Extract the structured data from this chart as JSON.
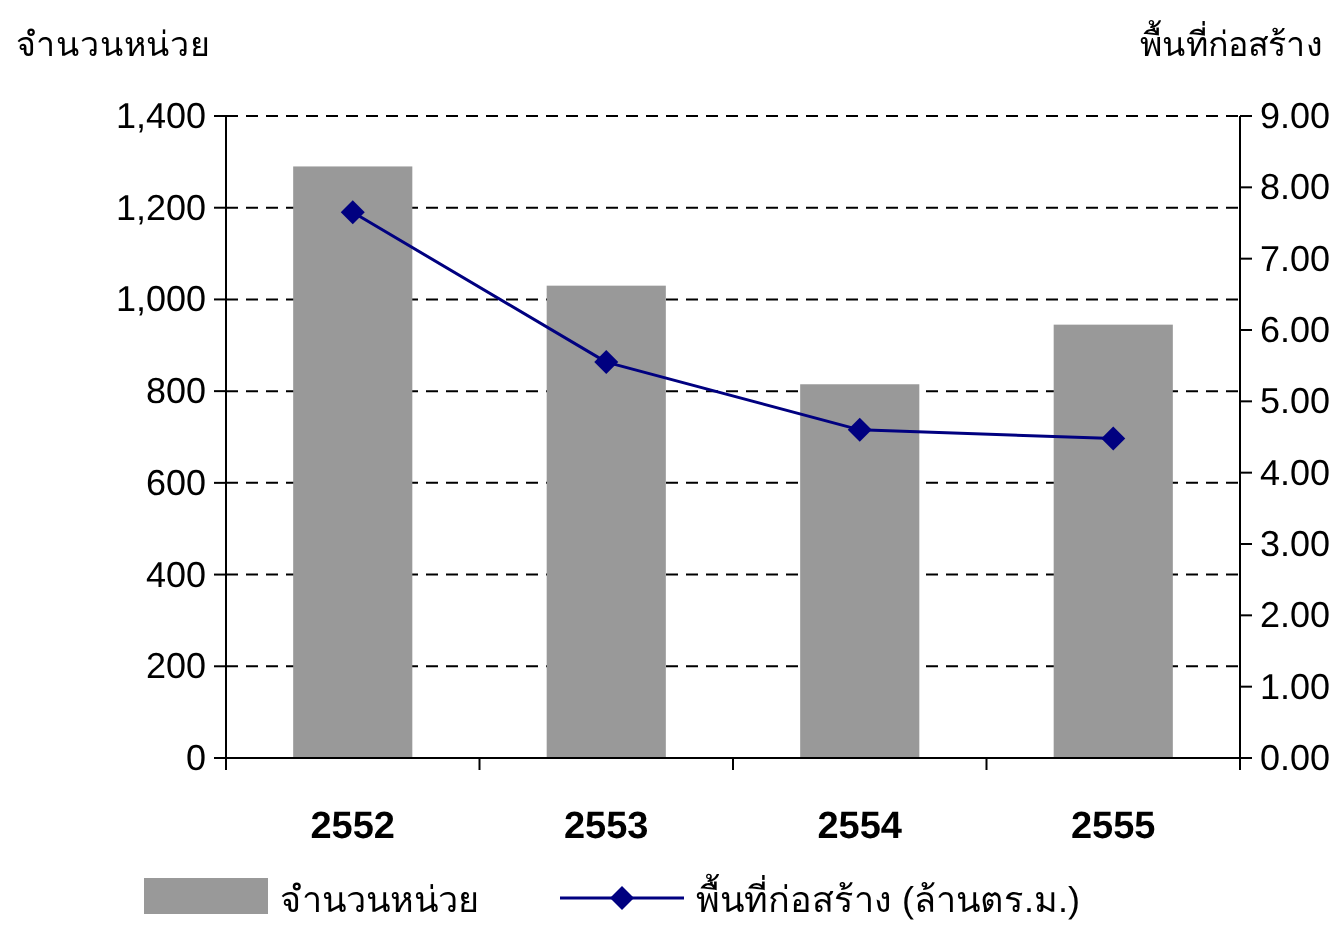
{
  "chart_data": {
    "type": "bar",
    "ylabel": "จำนวนหน่วย",
    "y2label": "พื้นที่ก่อสร้าง",
    "categories": [
      "2552",
      "2553",
      "2554",
      "2555"
    ],
    "series": [
      {
        "name": "จำนวนหน่วย",
        "color": "#999999",
        "values": [
          1290,
          1030,
          815,
          945
        ]
      },
      {
        "name": "พื้นที่ก่อสร้าง (ล้านตร.ม.)",
        "type": "line",
        "axis": "y2",
        "color": "#000080",
        "marker": "diamond",
        "values": [
          7.65,
          5.55,
          4.6,
          4.48
        ]
      }
    ],
    "ylim": [
      0,
      1400
    ],
    "yticks": [
      0,
      200,
      400,
      600,
      800,
      {
        "value": 1000,
        "label": "1,000"
      },
      {
        "value": 1200,
        "label": "1,200"
      },
      {
        "value": 1400,
        "label": "1,400"
      }
    ],
    "y2lim": [
      0,
      9
    ],
    "y2ticks": [
      {
        "value": 0,
        "label": "0.00"
      },
      {
        "value": 1,
        "label": "1.00"
      },
      {
        "value": 2,
        "label": "2.00"
      },
      {
        "value": 3,
        "label": "3.00"
      },
      {
        "value": 4,
        "label": "4.00"
      },
      {
        "value": 5,
        "label": "5.00"
      },
      {
        "value": 6,
        "label": "6.00"
      },
      {
        "value": 7,
        "label": "7.00"
      },
      {
        "value": 8,
        "label": "8.00"
      },
      {
        "value": 9,
        "label": "9.00"
      }
    ],
    "grid": "y",
    "legend": "bottom"
  }
}
